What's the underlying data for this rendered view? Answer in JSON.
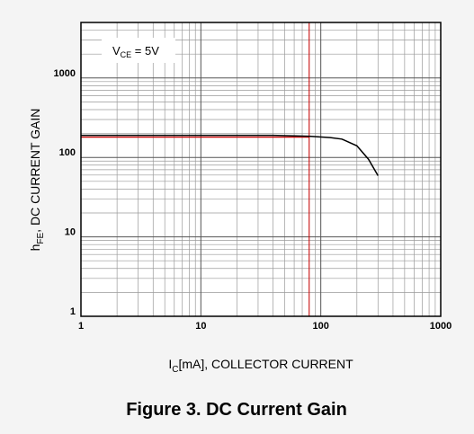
{
  "chart_data": {
    "type": "line",
    "title": "Figure 3. DC Current Gain",
    "x_label": {
      "main": "I",
      "sub": "C",
      "rest": "[mA], COLLECTOR CURRENT"
    },
    "y_label": {
      "main": "h",
      "sub": "FE",
      "rest": ", DC CURRENT GAIN"
    },
    "annotation": {
      "main": "V",
      "sub": "CE",
      "rest": " = 5V"
    },
    "log_x": true,
    "log_y": true,
    "grid": true,
    "xlim": [
      1,
      1000
    ],
    "ylim": [
      1,
      5000
    ],
    "xticks": [
      1,
      10,
      100,
      1000
    ],
    "yticks": [
      1,
      10,
      100,
      1000
    ],
    "xminorticks": [
      2,
      3,
      4,
      5,
      6,
      7,
      8,
      9,
      20,
      30,
      40,
      50,
      60,
      70,
      80,
      90,
      200,
      300,
      400,
      500,
      600,
      700,
      800,
      900
    ],
    "yminorticks": [
      2,
      3,
      4,
      5,
      6,
      7,
      8,
      9,
      20,
      30,
      40,
      50,
      60,
      70,
      80,
      90,
      200,
      300,
      400,
      500,
      600,
      700,
      800,
      900,
      2000,
      3000,
      4000
    ],
    "series": [
      {
        "color": "#000000",
        "x": [
          1,
          10,
          40,
          80,
          120,
          150,
          200,
          250,
          300
        ],
        "values": [
          190,
          190,
          190,
          185,
          178,
          170,
          140,
          95,
          59
        ]
      }
    ],
    "reference_lines": {
      "color": "#cc0000",
      "x": 80,
      "y": 180
    }
  }
}
